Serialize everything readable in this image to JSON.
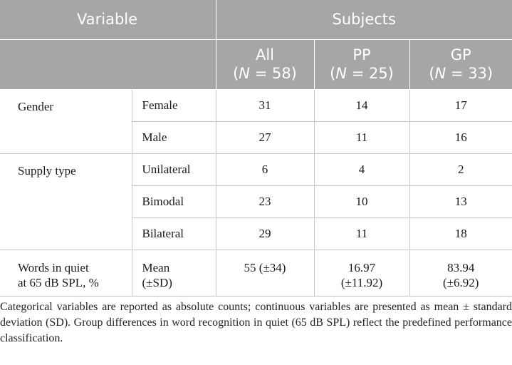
{
  "header": {
    "variable": "Variable",
    "subjects": "Subjects",
    "groups": [
      {
        "name": "All",
        "n_label": "N",
        "n_eq": " = 58)"
      },
      {
        "name": "PP",
        "n_label": "N",
        "n_eq": " = 25)"
      },
      {
        "name": "GP",
        "n_label": "N",
        "n_eq": " = 33)"
      }
    ]
  },
  "rows": {
    "gender": {
      "label": "Gender",
      "female": {
        "label": "Female",
        "all": "31",
        "pp": "14",
        "gp": "17"
      },
      "male": {
        "label": "Male",
        "all": "27",
        "pp": "11",
        "gp": "16"
      }
    },
    "supply": {
      "label": "Supply type",
      "unilateral": {
        "label": "Unilateral",
        "all": "6",
        "pp": "4",
        "gp": "2"
      },
      "bimodal": {
        "label": "Bimodal",
        "all": "23",
        "pp": "10",
        "gp": "13"
      },
      "bilateral": {
        "label": "Bilateral",
        "all": "29",
        "pp": "11",
        "gp": "18"
      }
    },
    "words": {
      "label_line1": "Words in quiet",
      "label_line2": "at 65 dB SPL, %",
      "stat_line1": "Mean",
      "stat_line2": "(±SD)",
      "all": "55 (±34)",
      "pp_line1": "16.97",
      "pp_line2": "(±11.92)",
      "gp_line1": "83.94",
      "gp_line2": "(±6.92)"
    }
  },
  "footnote": "Categorical variables are reported as absolute counts; continuous variables are presented as mean ± standard deviation (SD). Group differences in word recognition in quiet (65 dB SPL) reflect the predefined performance classification."
}
